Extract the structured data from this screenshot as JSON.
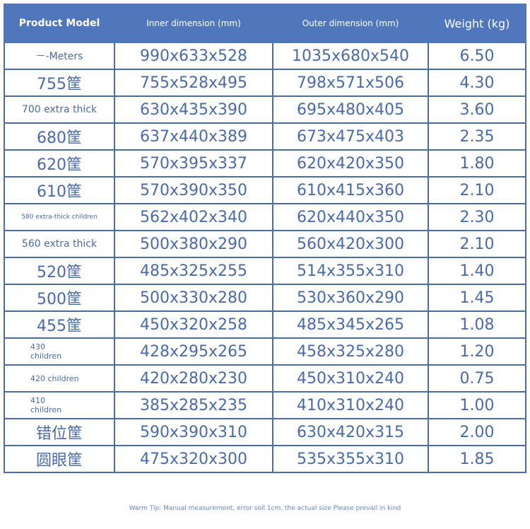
{
  "headers": [
    "Product Model",
    "Inner dimension (mm)",
    "Outer dimension (mm)",
    "Weight (kg)"
  ],
  "rows": [
    {
      "model": "－-Meters",
      "inner": "990x633x528",
      "outer": "1035x680x540",
      "weight": "6.50",
      "size": "s"
    },
    {
      "model": "755筐",
      "inner": "755x528x495",
      "outer": "798x571x506",
      "weight": "4.30",
      "size": ""
    },
    {
      "model": "700 extra thick",
      "inner": "630x435x390",
      "outer": "695x480x405",
      "weight": "3.60",
      "size": "s"
    },
    {
      "model": "680筐",
      "inner": "637x440x389",
      "outer": "673x475x403",
      "weight": "2.35",
      "size": ""
    },
    {
      "model": "620筐",
      "inner": "570x395x337",
      "outer": "620x420x350",
      "weight": "1.80",
      "size": ""
    },
    {
      "model": "610筐",
      "inner": "570x390x350",
      "outer": "610x415x360",
      "weight": "2.10",
      "size": ""
    },
    {
      "model": "580 extra-thick children",
      "inner": "562x402x340",
      "outer": "620x440x350",
      "weight": "2.30",
      "size": "xs"
    },
    {
      "model": "560 extra thick",
      "inner": "500x380x290",
      "outer": "560x420x300",
      "weight": "2.10",
      "size": "s"
    },
    {
      "model": "520筐",
      "inner": "485x325x255",
      "outer": "514x355x310",
      "weight": "1.40",
      "size": ""
    },
    {
      "model": "500筐",
      "inner": "500x330x280",
      "outer": "530x360x290",
      "weight": "1.45",
      "size": ""
    },
    {
      "model": "455筐",
      "inner": "450x320x258",
      "outer": "485x345x265",
      "weight": "1.08",
      "size": ""
    },
    {
      "model": "430 children",
      "inner": "428x295x265",
      "outer": "458x325x280",
      "weight": "1.20",
      "size": "wrap"
    },
    {
      "model": "420 children",
      "inner": "420x280x230",
      "outer": "450x310x240",
      "weight": "0.75",
      "size": "wrap"
    },
    {
      "model": "410 children",
      "inner": "385x285x235",
      "outer": "410x310x240",
      "weight": "1.00",
      "size": "wrap"
    },
    {
      "model": "错位筐",
      "inner": "590x390x310",
      "outer": "630x420x315",
      "weight": "2.00",
      "size": ""
    },
    {
      "model": "圆眼筐",
      "inner": "475x320x300",
      "outer": "535x355x310",
      "weight": "1.85",
      "size": ""
    }
  ],
  "tip": "Warm Tip: Manual measurement, error soil 1cm, the actual size Please prevail in kind",
  "colors": {
    "header_bg": "#5077bb",
    "border": "#4b6ca8",
    "text": "#4a6ba6"
  }
}
